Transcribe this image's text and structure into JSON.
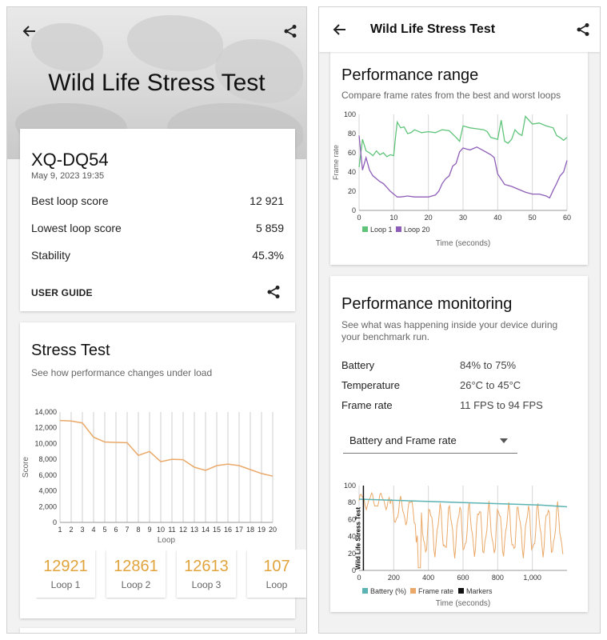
{
  "left": {
    "title": "Wild Life Stress Test",
    "device": {
      "name": "XQ-DQ54",
      "date": "May 9, 2023 19:35"
    },
    "summary": [
      {
        "label": "Best loop score",
        "value": "12 921"
      },
      {
        "label": "Lowest loop score",
        "value": "5 859"
      },
      {
        "label": "Stability",
        "value": "45.3%"
      }
    ],
    "user_guide": "USER GUIDE",
    "stress": {
      "title": "Stress Test",
      "subtitle": "See how performance changes under load"
    },
    "tiles": [
      {
        "value": "12921",
        "label": "Loop 1"
      },
      {
        "value": "12861",
        "label": "Loop 2"
      },
      {
        "value": "12613",
        "label": "Loop 3"
      },
      {
        "value": "107",
        "label": "Loop"
      }
    ]
  },
  "right": {
    "title": "Wild Life Stress Test",
    "range": {
      "title": "Performance range",
      "subtitle": "Compare frame rates from the best and worst loops"
    },
    "monitoring": {
      "title": "Performance monitoring",
      "subtitle": "See what was happening inside your device during your benchmark run.",
      "rows": [
        {
          "label": "Battery",
          "value": "84% to 75%"
        },
        {
          "label": "Temperature",
          "value": "26°C to 45°C"
        },
        {
          "label": "Frame rate",
          "value": "11 FPS to 94 FPS"
        }
      ],
      "select": "Battery and Frame rate"
    }
  },
  "colors": {
    "orange": "#eaa968",
    "green": "#5fc47a",
    "purple": "#8d5db7",
    "teal": "#5cb3b3",
    "accent": "#e1a33c"
  },
  "chart_data": [
    {
      "type": "line",
      "title": "",
      "xlabel": "Loop",
      "ylabel": "Score",
      "x": [
        1,
        2,
        3,
        4,
        5,
        6,
        7,
        8,
        9,
        10,
        11,
        12,
        13,
        14,
        15,
        16,
        17,
        18,
        19,
        20
      ],
      "series": [
        {
          "values": [
            12921,
            12861,
            12613,
            10800,
            10200,
            10150,
            10100,
            8500,
            9000,
            7700,
            8000,
            7950,
            7000,
            6600,
            7200,
            7400,
            7200,
            6700,
            6200,
            5859
          ]
        }
      ],
      "ylim": [
        0,
        14000
      ],
      "yticks": [
        "0",
        "2,000",
        "4,000",
        "6,000",
        "8,000",
        "10,000",
        "12,000",
        "14,000"
      ],
      "grid": "vertical"
    },
    {
      "type": "line",
      "xlabel": "Time (seconds)",
      "ylabel": "Frame rate",
      "xlim": [
        0,
        60
      ],
      "ylim": [
        0,
        100
      ],
      "xticks": [
        "0",
        "10",
        "20",
        "30",
        "40",
        "50",
        "60"
      ],
      "yticks": [
        "0",
        "20",
        "40",
        "60",
        "80",
        "100"
      ],
      "legend": "bottom-left",
      "series": [
        {
          "name": "Loop 1",
          "color": "#5fc47a",
          "x": [
            0,
            1,
            2,
            3,
            4,
            5,
            6,
            7,
            8,
            9,
            10,
            10.5,
            11,
            12,
            13,
            14,
            15,
            16,
            18,
            20,
            22,
            24,
            26,
            28,
            29,
            30,
            32,
            34,
            36,
            37,
            38,
            40,
            41,
            42,
            43,
            44,
            45,
            46,
            47,
            48,
            50,
            52,
            54,
            56,
            57,
            58,
            59,
            60
          ],
          "y": [
            45,
            74,
            62,
            60,
            57,
            62,
            58,
            60,
            56,
            58,
            57,
            76,
            92,
            86,
            87,
            80,
            81,
            84,
            81,
            82,
            81,
            84,
            83,
            76,
            72,
            88,
            86,
            85,
            84,
            82,
            76,
            74,
            94,
            72,
            70,
            74,
            84,
            80,
            78,
            98,
            90,
            91,
            88,
            86,
            78,
            76,
            73,
            76
          ]
        },
        {
          "name": "Loop 20",
          "color": "#8d5db7",
          "x": [
            0,
            1,
            2,
            3,
            4,
            5,
            6,
            7,
            8,
            9,
            10,
            11,
            12,
            14,
            16,
            18,
            20,
            22,
            23,
            24,
            25,
            26,
            27,
            28,
            29,
            30,
            31,
            32,
            34,
            36,
            38,
            39,
            40,
            42,
            44,
            46,
            48,
            50,
            52,
            54,
            55,
            56,
            57,
            58,
            59,
            60
          ],
          "y": [
            78,
            42,
            55,
            42,
            36,
            33,
            30,
            28,
            24,
            20,
            17,
            14,
            14,
            15,
            14,
            14,
            14,
            16,
            20,
            28,
            33,
            36,
            46,
            49,
            61,
            65,
            64,
            63,
            66,
            62,
            58,
            55,
            38,
            27,
            25,
            22,
            19,
            17,
            17,
            15,
            13,
            21,
            28,
            36,
            40,
            52
          ]
        }
      ]
    },
    {
      "type": "line",
      "xlabel": "Time (seconds)",
      "xlim": [
        0,
        1200
      ],
      "ylim": [
        0,
        100
      ],
      "xticks": [
        "0",
        "200",
        "400",
        "600",
        "800",
        "1,000"
      ],
      "yticks": [
        "0",
        "20",
        "40",
        "60",
        "80",
        "100"
      ],
      "legend": "bottom-left",
      "marker_label": "Wild Life Stress Test",
      "series": [
        {
          "name": "Battery (%)",
          "color": "#5cb3b3",
          "x": [
            0,
            150,
            300,
            450,
            600,
            750,
            900,
            1050,
            1200
          ],
          "y": [
            84,
            83,
            82,
            81,
            80,
            79,
            78,
            77,
            75
          ]
        },
        {
          "name": "Frame rate",
          "color": "#eaa968"
        },
        {
          "name": "Markers",
          "color": "#111111"
        }
      ]
    }
  ]
}
